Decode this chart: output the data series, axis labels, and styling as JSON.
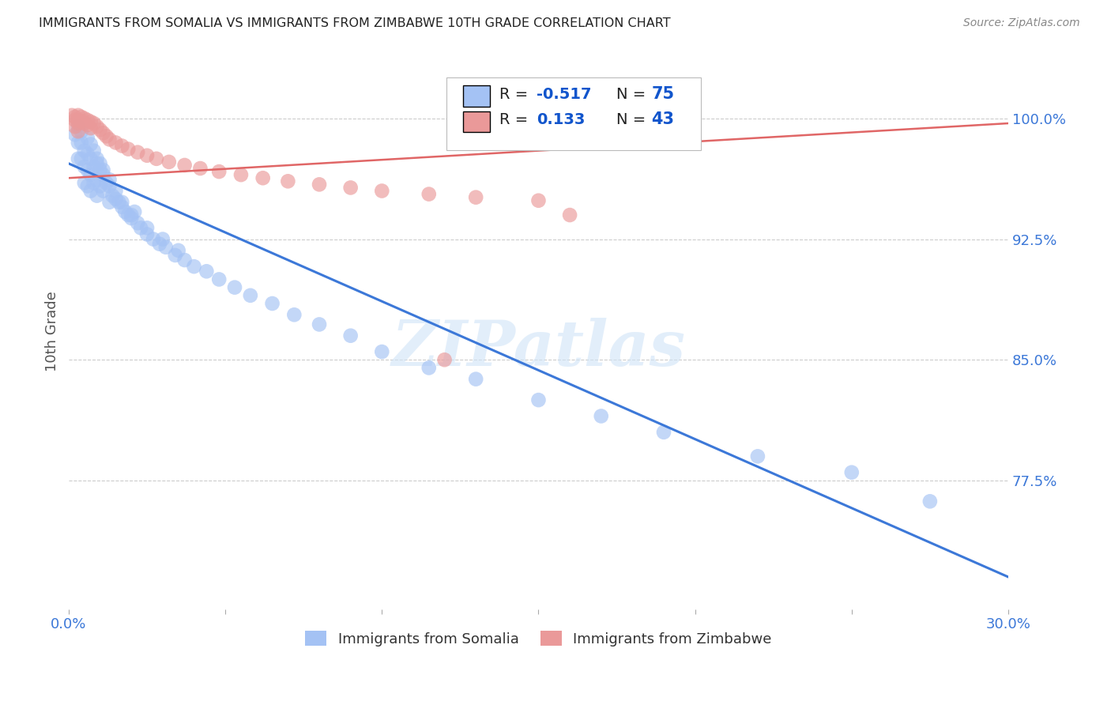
{
  "title": "IMMIGRANTS FROM SOMALIA VS IMMIGRANTS FROM ZIMBABWE 10TH GRADE CORRELATION CHART",
  "source": "Source: ZipAtlas.com",
  "ylabel": "10th Grade",
  "ytick_labels": [
    "100.0%",
    "92.5%",
    "85.0%",
    "77.5%"
  ],
  "ytick_values": [
    1.0,
    0.925,
    0.85,
    0.775
  ],
  "xlim": [
    0.0,
    0.3
  ],
  "ylim": [
    0.695,
    1.04
  ],
  "color_somalia": "#a4c2f4",
  "color_zimbabwe": "#ea9999",
  "color_somalia_line": "#3c78d8",
  "color_zimbabwe_line": "#e06666",
  "color_r_label": "#333333",
  "color_r_value": "#1155cc",
  "color_n_value": "#1155cc",
  "watermark": "ZIPatlas",
  "somalia_line_x": [
    0.0,
    0.3
  ],
  "somalia_line_y": [
    0.972,
    0.715
  ],
  "zimbabwe_line_x": [
    0.0,
    0.3
  ],
  "zimbabwe_line_y": [
    0.963,
    0.997
  ],
  "somalia_x": [
    0.002,
    0.003,
    0.003,
    0.004,
    0.004,
    0.005,
    0.005,
    0.005,
    0.006,
    0.006,
    0.006,
    0.007,
    0.007,
    0.007,
    0.008,
    0.008,
    0.009,
    0.009,
    0.009,
    0.01,
    0.01,
    0.011,
    0.011,
    0.012,
    0.013,
    0.013,
    0.014,
    0.015,
    0.016,
    0.017,
    0.018,
    0.019,
    0.02,
    0.021,
    0.022,
    0.023,
    0.025,
    0.027,
    0.029,
    0.031,
    0.034,
    0.037,
    0.04,
    0.044,
    0.048,
    0.053,
    0.058,
    0.065,
    0.072,
    0.08,
    0.09,
    0.1,
    0.115,
    0.13,
    0.15,
    0.17,
    0.19,
    0.22,
    0.25,
    0.275,
    0.003,
    0.004,
    0.006,
    0.007,
    0.008,
    0.009,
    0.01,
    0.011,
    0.013,
    0.015,
    0.017,
    0.02,
    0.025,
    0.03,
    0.035
  ],
  "somalia_y": [
    0.99,
    0.985,
    0.975,
    0.985,
    0.975,
    0.98,
    0.97,
    0.96,
    0.978,
    0.968,
    0.958,
    0.975,
    0.965,
    0.955,
    0.97,
    0.96,
    0.972,
    0.962,
    0.952,
    0.968,
    0.958,
    0.965,
    0.955,
    0.96,
    0.958,
    0.948,
    0.952,
    0.95,
    0.948,
    0.945,
    0.942,
    0.94,
    0.938,
    0.942,
    0.935,
    0.932,
    0.928,
    0.925,
    0.922,
    0.92,
    0.915,
    0.912,
    0.908,
    0.905,
    0.9,
    0.895,
    0.89,
    0.885,
    0.878,
    0.872,
    0.865,
    0.855,
    0.845,
    0.838,
    0.825,
    0.815,
    0.805,
    0.79,
    0.78,
    0.762,
    0.995,
    0.992,
    0.988,
    0.984,
    0.98,
    0.975,
    0.972,
    0.968,
    0.962,
    0.955,
    0.948,
    0.94,
    0.932,
    0.925,
    0.918
  ],
  "zimbabwe_x": [
    0.001,
    0.002,
    0.002,
    0.003,
    0.003,
    0.003,
    0.004,
    0.004,
    0.005,
    0.005,
    0.006,
    0.006,
    0.007,
    0.007,
    0.008,
    0.009,
    0.01,
    0.011,
    0.012,
    0.013,
    0.015,
    0.017,
    0.019,
    0.022,
    0.025,
    0.028,
    0.032,
    0.037,
    0.042,
    0.048,
    0.055,
    0.062,
    0.07,
    0.08,
    0.09,
    0.1,
    0.115,
    0.13,
    0.15,
    0.002,
    0.003,
    0.12,
    0.16
  ],
  "zimbabwe_y": [
    1.002,
    1.001,
    0.999,
    1.002,
    0.999,
    0.997,
    1.001,
    0.998,
    1.0,
    0.997,
    0.999,
    0.996,
    0.998,
    0.994,
    0.997,
    0.995,
    0.993,
    0.991,
    0.989,
    0.987,
    0.985,
    0.983,
    0.981,
    0.979,
    0.977,
    0.975,
    0.973,
    0.971,
    0.969,
    0.967,
    0.965,
    0.963,
    0.961,
    0.959,
    0.957,
    0.955,
    0.953,
    0.951,
    0.949,
    0.995,
    0.992,
    0.85,
    0.94
  ]
}
